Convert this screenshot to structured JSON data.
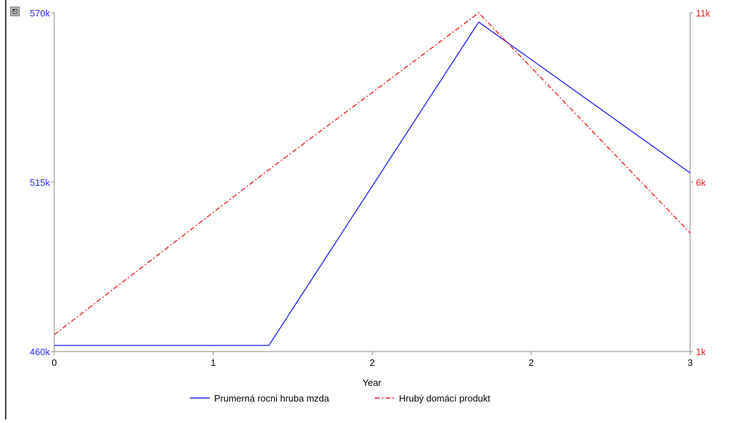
{
  "chart_data": {
    "type": "line",
    "xlabel": "Year",
    "x": [
      0,
      1,
      2,
      3,
      4
    ],
    "x_tick_labels": [
      "0",
      "1",
      "2",
      "2",
      "3"
    ],
    "xlim": [
      0,
      4
    ],
    "y_left": {
      "lim": [
        460,
        570
      ],
      "ticks": [
        "460k",
        "515k",
        "570k"
      ],
      "color": "#2a2aff"
    },
    "y_right": {
      "lim": [
        1,
        11
      ],
      "ticks": [
        "1k",
        "6k",
        "11k"
      ],
      "color": "#ee2222"
    },
    "series": [
      {
        "name": "Prumerná rocni hruba mzda",
        "axis": "left",
        "color": "#2a2aff",
        "style": "solid",
        "points": [
          [
            0,
            462
          ],
          [
            1.35,
            462
          ],
          [
            2.67,
            567
          ],
          [
            4,
            518
          ]
        ]
      },
      {
        "name": "Hrubý domácí produkt",
        "axis": "right",
        "color": "#ee2222",
        "style": "dash-dot",
        "points": [
          [
            0,
            1.5
          ],
          [
            1.33,
            6.3
          ],
          [
            2.67,
            11.0
          ],
          [
            4,
            4.5
          ]
        ]
      }
    ],
    "legend_position": "bottom-center",
    "grid": false
  }
}
